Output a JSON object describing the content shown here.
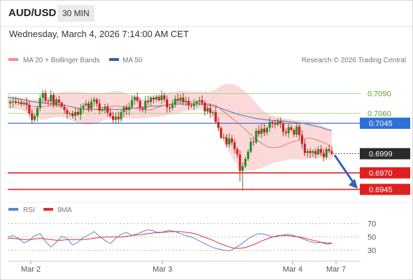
{
  "header": {
    "pair": "AUD/USD",
    "timeframe": "30 MIN",
    "datetime": "Wednesday, March 4, 2026 7:14:00 AM CET"
  },
  "legend": {
    "ma20": "MA 20 + Bollinger Bands",
    "ma50": "MA 50",
    "credit": "Research © 2026 Trading Central",
    "rsi": "RSI",
    "rsi_ma": "9MA"
  },
  "colors": {
    "up": "#2e8b2e",
    "down": "#cc2222",
    "bollinger": "#f9c9c9",
    "ma20": "#e07b66",
    "ma50": "#6b7fb8",
    "blue_level": "#3a6fd8",
    "red_level": "#e02020",
    "green_level": "#a8cf85",
    "rsi": "#5b84d6",
    "rsi_ma": "#e03030",
    "arrow": "#2f63b8"
  },
  "chart_data": [
    {
      "type": "candlestick",
      "ylim": [
        0.6935,
        0.7115
      ],
      "x_ticks": [
        "Mar 2",
        "Mar 3",
        "Mar 4",
        "Mar 7"
      ],
      "levels": [
        {
          "label": "0.7090",
          "value": 0.709,
          "style": "green-line"
        },
        {
          "label": "0.7060",
          "value": 0.706,
          "style": "green-line"
        },
        {
          "label": "0.7045",
          "value": 0.7045,
          "style": "blue-line"
        },
        {
          "label": "0.6999",
          "value": 0.6999,
          "style": "last-price"
        },
        {
          "label": "0.6970",
          "value": 0.697,
          "style": "red-line"
        },
        {
          "label": "0.6945",
          "value": 0.6945,
          "style": "red-line"
        }
      ],
      "path_closes": [
        0.7075,
        0.7077,
        0.7078,
        0.7076,
        0.7077,
        0.7074,
        0.7076,
        0.7073,
        0.706,
        0.705,
        0.7056,
        0.7068,
        0.7083,
        0.7091,
        0.7079,
        0.7078,
        0.7088,
        0.7073,
        0.7081,
        0.7076,
        0.707,
        0.7065,
        0.7059,
        0.706,
        0.7056,
        0.7062,
        0.7058,
        0.7068,
        0.7072,
        0.7075,
        0.7067,
        0.7078,
        0.7081,
        0.7075,
        0.7064,
        0.7066,
        0.707,
        0.7061,
        0.7056,
        0.705,
        0.7055,
        0.7051,
        0.7062,
        0.7069,
        0.7065,
        0.707,
        0.708,
        0.7085,
        0.7079,
        0.7068,
        0.7066,
        0.7079,
        0.7077,
        0.7084,
        0.7081,
        0.7085,
        0.708,
        0.7087,
        0.7081,
        0.7069,
        0.7068,
        0.7073,
        0.7082,
        0.7079,
        0.7084,
        0.7077,
        0.7079,
        0.7072,
        0.7071,
        0.7075,
        0.7078,
        0.708,
        0.7076,
        0.7063,
        0.7068,
        0.7061,
        0.7062,
        0.7047,
        0.7038,
        0.7023,
        0.7024,
        0.7013,
        0.7022,
        0.7016,
        0.7006,
        0.6998,
        0.6973,
        0.698,
        0.6991,
        0.7002,
        0.7017,
        0.7016,
        0.7034,
        0.7029,
        0.7037,
        0.7031,
        0.7038,
        0.7047,
        0.7045,
        0.7043,
        0.7048,
        0.7044,
        0.7032,
        0.703,
        0.7039,
        0.7035,
        0.7028,
        0.704,
        0.7027,
        0.7014,
        0.7,
        0.7003,
        0.7,
        0.7003,
        0.6998,
        0.7006,
        0.7,
        0.6994,
        0.7006,
        0.7003,
        0.6999
      ],
      "ma20": [
        0.7077,
        0.7077,
        0.7076,
        0.7074,
        0.7071,
        0.707,
        0.707,
        0.7071,
        0.7072,
        0.7073,
        0.7072,
        0.707,
        0.7068,
        0.7066,
        0.7065,
        0.7066,
        0.7068,
        0.707,
        0.7071,
        0.7071,
        0.707,
        0.7069,
        0.7068,
        0.7066,
        0.7065,
        0.7066,
        0.7069,
        0.7072,
        0.7074,
        0.7076,
        0.7077,
        0.7078,
        0.7077,
        0.7076,
        0.7075,
        0.7074,
        0.7072,
        0.7065,
        0.7058,
        0.7051,
        0.7044,
        0.7036,
        0.7028,
        0.702,
        0.7014,
        0.7009,
        0.7008,
        0.7009,
        0.7013,
        0.7016,
        0.7019,
        0.7021,
        0.7023,
        0.7021,
        0.7018,
        0.7014,
        0.701
      ],
      "bb_upper": [
        0.7088,
        0.7086,
        0.7084,
        0.7083,
        0.7082,
        0.7081,
        0.7081,
        0.7085,
        0.7088,
        0.7092,
        0.7093,
        0.7093,
        0.7093,
        0.7092,
        0.7091,
        0.709,
        0.7091,
        0.7092,
        0.7093,
        0.7094,
        0.7092,
        0.7088,
        0.7085,
        0.7082,
        0.7081,
        0.7083,
        0.7087,
        0.709,
        0.7092,
        0.7093,
        0.7094,
        0.7094,
        0.7093,
        0.7093,
        0.7093,
        0.7093,
        0.7097,
        0.7102,
        0.7105,
        0.7104,
        0.71,
        0.7093,
        0.7085,
        0.7075,
        0.7065,
        0.7059,
        0.7056,
        0.7054,
        0.7052,
        0.7051,
        0.705,
        0.7049,
        0.7048,
        0.7046,
        0.7043,
        0.7039,
        0.7034
      ],
      "bb_lower": [
        0.7067,
        0.7067,
        0.7066,
        0.7063,
        0.7057,
        0.7053,
        0.705,
        0.7052,
        0.7054,
        0.7055,
        0.7053,
        0.7049,
        0.7046,
        0.7044,
        0.7043,
        0.7044,
        0.7047,
        0.7051,
        0.7053,
        0.7053,
        0.7053,
        0.7052,
        0.7052,
        0.7052,
        0.7053,
        0.7054,
        0.7055,
        0.7056,
        0.7058,
        0.706,
        0.7062,
        0.7064,
        0.7065,
        0.7066,
        0.7065,
        0.706,
        0.7045,
        0.7025,
        0.7005,
        0.699,
        0.6978,
        0.6974,
        0.6974,
        0.6975,
        0.6978,
        0.6982,
        0.6985,
        0.6987,
        0.6989,
        0.6991,
        0.699,
        0.699,
        0.6991,
        0.6992,
        0.6992,
        0.6991,
        0.699
      ],
      "ma50": [
        0.7084,
        0.7083,
        0.7082,
        0.708,
        0.7078,
        0.7077,
        0.7076,
        0.7075,
        0.7074,
        0.7073,
        0.7072,
        0.707,
        0.7068,
        0.7067,
        0.7066,
        0.7066,
        0.7066,
        0.7065,
        0.7066,
        0.7066,
        0.7066,
        0.7067,
        0.7068,
        0.7069,
        0.707,
        0.7071,
        0.7071,
        0.7072,
        0.7073,
        0.7074,
        0.7074,
        0.7074,
        0.7074,
        0.7074,
        0.7073,
        0.7072,
        0.707,
        0.7067,
        0.7064,
        0.7061,
        0.7058,
        0.7056,
        0.7054,
        0.7052,
        0.7051,
        0.705,
        0.7049,
        0.7049,
        0.7048,
        0.7047,
        0.7046,
        0.7045,
        0.7043,
        0.7041,
        0.7039,
        0.7036,
        0.7034
      ],
      "projection": {
        "from": 0.6999,
        "to": 0.6945
      }
    },
    {
      "type": "line",
      "ylim": [
        20,
        80
      ],
      "y_ticks": [
        70,
        50,
        30
      ],
      "series": [
        {
          "name": "RSI",
          "values": [
            50,
            52,
            48,
            41,
            45,
            52,
            55,
            43,
            35,
            42,
            51,
            48,
            38,
            42,
            49,
            53,
            58,
            51,
            45,
            40,
            48,
            54,
            57,
            52,
            55,
            58,
            61,
            59,
            56,
            58,
            60,
            58,
            55,
            52,
            50,
            46,
            42,
            38,
            34,
            32,
            30,
            29,
            33,
            38,
            44,
            50,
            54,
            55,
            53,
            50,
            51,
            53,
            54,
            52,
            49,
            46,
            43,
            41,
            42,
            39,
            40
          ]
        },
        {
          "name": "9MA",
          "values": [
            48,
            48,
            47,
            46,
            46,
            47,
            48,
            47,
            46,
            45,
            45,
            46,
            46,
            46,
            46,
            47,
            48,
            49,
            50,
            50,
            50,
            50,
            51,
            52,
            53,
            54,
            55,
            56,
            57,
            57,
            58,
            58,
            58,
            57,
            56,
            54,
            51,
            48,
            45,
            41,
            38,
            35,
            33,
            33,
            34,
            37,
            40,
            44,
            47,
            50,
            52,
            52,
            52,
            51,
            50,
            48,
            46,
            44,
            42,
            41,
            41
          ]
        }
      ]
    }
  ]
}
